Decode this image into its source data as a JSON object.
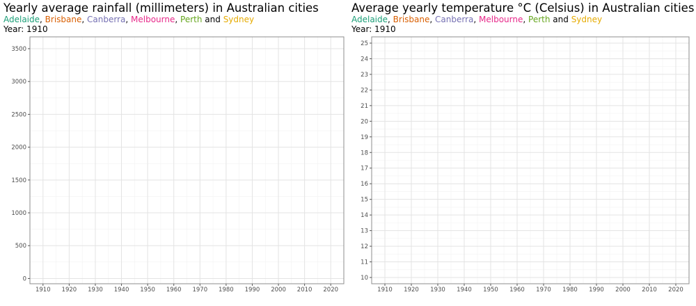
{
  "cities": [
    {
      "name": "Adelaide",
      "color": "#1b9e77"
    },
    {
      "name": "Brisbane",
      "color": "#d95f02"
    },
    {
      "name": "Canberra",
      "color": "#7570b3"
    },
    {
      "name": "Melbourne",
      "color": "#e7298a"
    },
    {
      "name": "Perth",
      "color": "#66a61e"
    },
    {
      "name": "Sydney",
      "color": "#e6ab02"
    }
  ],
  "legend_and": "and",
  "year_label": "Year: 1910",
  "chart_data": [
    {
      "type": "line",
      "title": "Yearly average rainfall (millimeters) in Australian cities",
      "year": "1910",
      "xlim": [
        1905,
        2025
      ],
      "ylim": [
        -80,
        3680
      ],
      "x_ticks": [
        1910,
        1920,
        1930,
        1940,
        1950,
        1960,
        1970,
        1980,
        1990,
        2000,
        2010,
        2020
      ],
      "y_ticks": [
        0,
        500,
        1000,
        1500,
        2000,
        2500,
        3000,
        3500
      ],
      "grid": true,
      "series": []
    },
    {
      "type": "line",
      "title": "Average yearly temperature °C (Celsius) in Australian cities",
      "year": "1910",
      "xlim": [
        1905,
        2025
      ],
      "ylim": [
        9.6,
        25.4
      ],
      "x_ticks": [
        1910,
        1920,
        1930,
        1940,
        1950,
        1960,
        1970,
        1980,
        1990,
        2000,
        2010,
        2020
      ],
      "y_ticks": [
        10,
        11,
        12,
        13,
        14,
        15,
        16,
        17,
        18,
        19,
        20,
        21,
        22,
        23,
        24,
        25
      ],
      "grid": true,
      "series": []
    }
  ]
}
